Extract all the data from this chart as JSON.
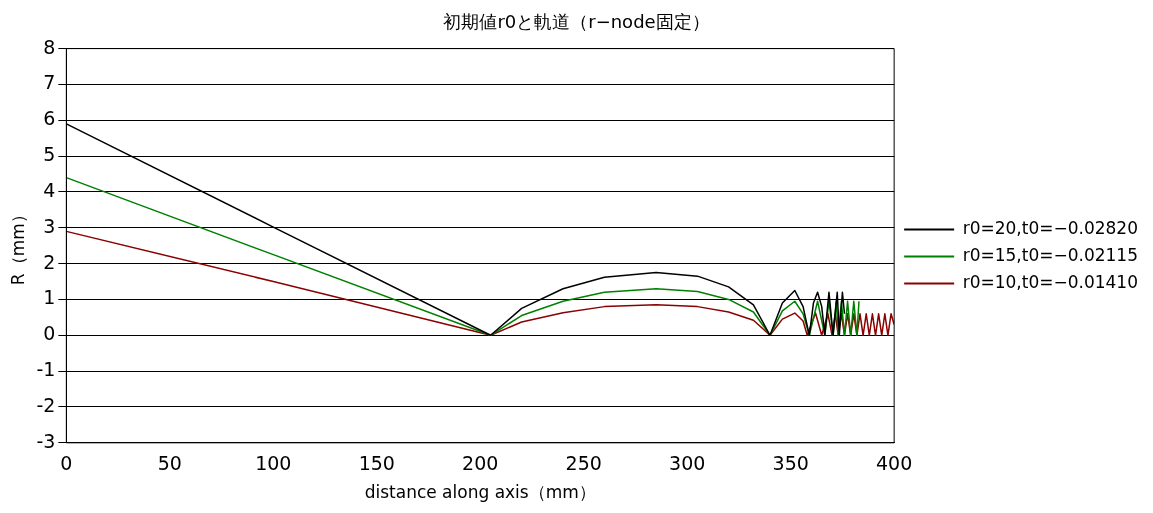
{
  "chart_data": {
    "type": "line",
    "title": "初期値r0と軌道（r−node固定）",
    "xlabel": "distance along axis（mm）",
    "ylabel": "R（mm）",
    "xlim": [
      0,
      400
    ],
    "xticks": [
      0,
      50,
      100,
      150,
      200,
      250,
      300,
      350,
      400
    ],
    "ylim": [
      -3,
      8
    ],
    "yticks": [
      -3,
      -2,
      -1,
      0,
      1,
      2,
      3,
      4,
      5,
      6,
      7,
      8
    ],
    "grid": "y",
    "legend": "right",
    "marker": "none",
    "line_style": "solid",
    "series": [
      {
        "name": "r0=20,t0=−0.02820",
        "color": "#000000",
        "x": [
          0,
          100,
          205,
          220,
          240,
          260,
          285,
          305,
          320,
          332,
          340,
          346,
          352,
          356,
          359,
          361,
          363,
          365,
          366.5,
          368.5,
          370.5,
          372.5,
          373.5,
          375,
          376
        ],
        "values": [
          5.9,
          3.02,
          0,
          0.75,
          1.3,
          1.62,
          1.75,
          1.65,
          1.35,
          0.85,
          0,
          0.9,
          1.25,
          0.8,
          0,
          0.9,
          1.2,
          0.8,
          0,
          1.2,
          0,
          1.2,
          0,
          1.2,
          0.6
        ]
      },
      {
        "name": "r0=15,t0=−0.02115",
        "color": "#008000",
        "x": [
          0,
          100,
          205,
          220,
          240,
          260,
          285,
          305,
          320,
          332,
          340,
          346,
          352,
          356,
          359,
          363,
          366.5,
          368.5,
          370.5,
          372,
          373,
          374.5,
          376,
          377.5,
          379,
          380.5,
          382,
          383
        ],
        "values": [
          4.4,
          2.25,
          0,
          0.55,
          0.95,
          1.2,
          1.3,
          1.22,
          1.0,
          0.65,
          0,
          0.68,
          0.95,
          0.6,
          0,
          0.95,
          0,
          0.95,
          0,
          0.95,
          0,
          0.95,
          0,
          0.95,
          0,
          0.95,
          0,
          0.95
        ]
      },
      {
        "name": "r0=10,t0=−0.01410",
        "color": "#8b0000",
        "x": [
          0,
          100,
          205,
          220,
          240,
          260,
          285,
          305,
          320,
          332,
          340,
          346,
          352,
          356,
          358,
          362,
          365,
          368,
          370,
          371.5,
          373,
          374.5,
          376,
          377.5,
          379,
          380.5,
          382,
          383.5,
          385,
          386.5,
          388,
          389.5,
          391,
          392.5,
          394,
          395.5,
          397,
          398.5,
          400
        ],
        "values": [
          2.9,
          1.5,
          0,
          0.37,
          0.63,
          0.8,
          0.85,
          0.8,
          0.65,
          0.42,
          0,
          0.45,
          0.62,
          0.4,
          0,
          0.62,
          0,
          0.6,
          0,
          0.6,
          0,
          0.6,
          0,
          0.6,
          0,
          0.6,
          0,
          0.6,
          0,
          0.6,
          0,
          0.6,
          0,
          0.6,
          0,
          0.6,
          0,
          0.6,
          0.3
        ]
      }
    ]
  }
}
